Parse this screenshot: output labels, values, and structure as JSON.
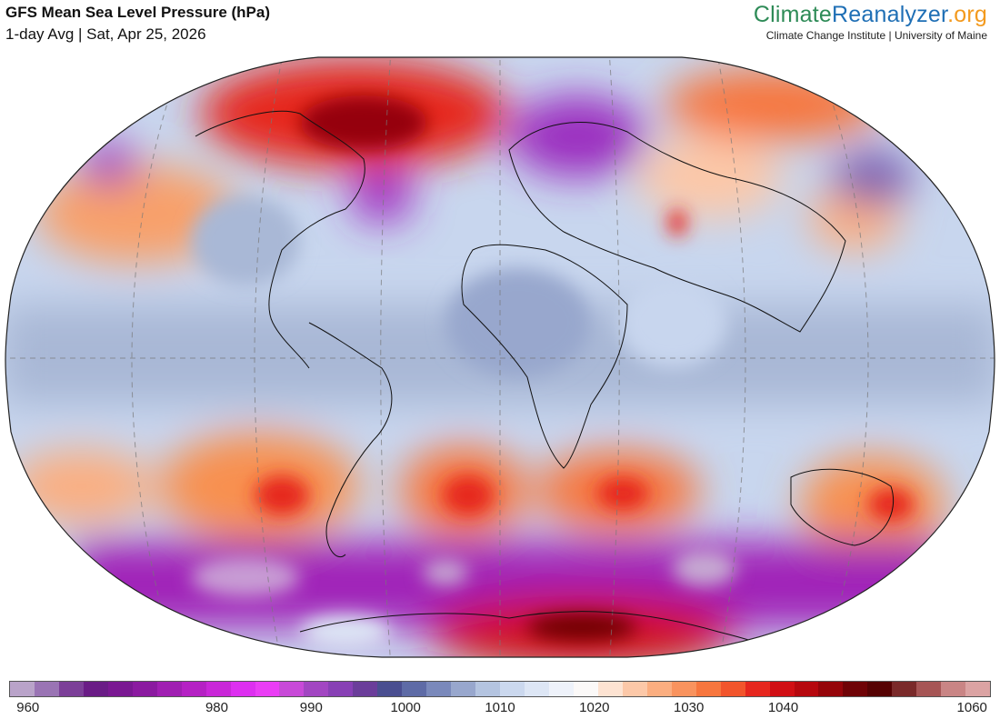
{
  "header": {
    "title": "GFS Mean Sea Level Pressure (hPa)",
    "subtitle": "1-day Avg | Sat, Apr 25, 2026"
  },
  "brand": {
    "part1": "Climate",
    "part2": "Reanalyzer",
    "part3": ".org",
    "tagline": "Climate Change Institute | University of Maine"
  },
  "map": {
    "projection": "robinson-like (world)",
    "features": [
      "pressure-field",
      "coastlines",
      "country-borders",
      "graticule"
    ]
  },
  "colorbar": {
    "unit": "hPa",
    "min": 958,
    "max": 1062,
    "labels": [
      "960",
      "980",
      "990",
      "1000",
      "1010",
      "1020",
      "1030",
      "1040",
      "1060"
    ],
    "label_values": [
      960,
      980,
      990,
      1000,
      1010,
      1020,
      1030,
      1040,
      1060
    ],
    "colors": [
      "#b9a3c9",
      "#9a74b4",
      "#7c3f98",
      "#6a1c86",
      "#7a1892",
      "#8b1aa0",
      "#a01fb2",
      "#b521c4",
      "#c927d8",
      "#dd2ff0",
      "#ea3df5",
      "#c84ad8",
      "#a246c2",
      "#8840b5",
      "#6b3d9a",
      "#4a4e90",
      "#5e6ba6",
      "#7a89bb",
      "#98a7cd",
      "#b4c4e0",
      "#cbd8ee",
      "#dde6f5",
      "#eef2fa",
      "#fbf9f8",
      "#fde3d2",
      "#fcc8a8",
      "#fbae80",
      "#f9935e",
      "#f7763e",
      "#f2552c",
      "#e6271e",
      "#d10f14",
      "#b6080e",
      "#95050a",
      "#6f0306",
      "#560203",
      "#7a2a2a",
      "#a65555",
      "#c98585",
      "#dba3a3"
    ]
  }
}
